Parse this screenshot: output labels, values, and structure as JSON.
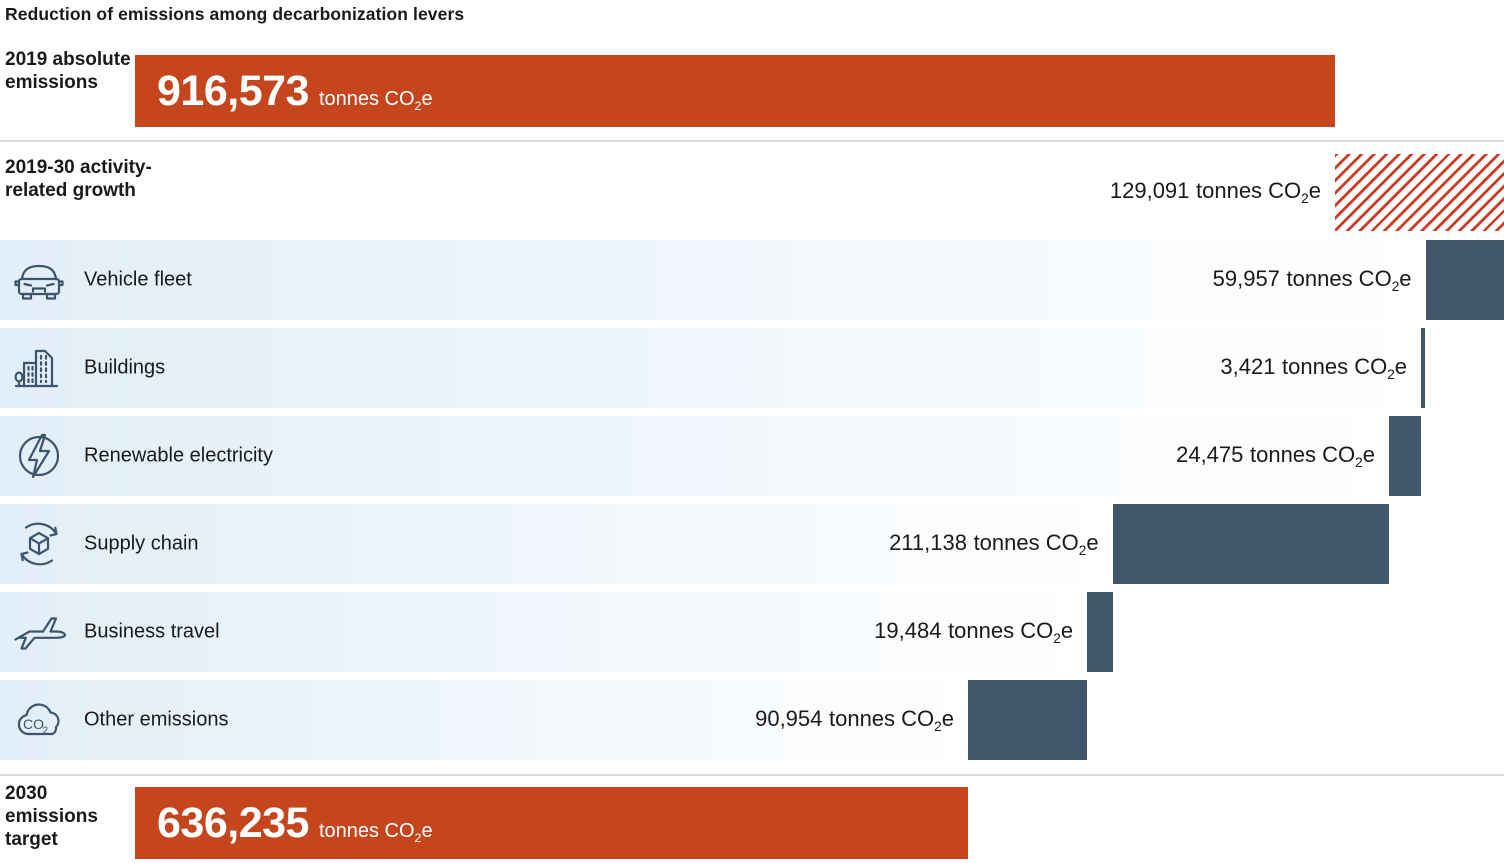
{
  "title": "Reduction of emissions among decarbonization levers",
  "units": {
    "prefix": "tonnes CO",
    "sub": "2",
    "suffix": "e"
  },
  "colors": {
    "orange": "#c5451d",
    "hatch_red": "#cf3b24",
    "dark_blue": "#41566b",
    "band_blue": "#e2eef8",
    "icon_blue": "#3d546a"
  },
  "chart_data": {
    "type": "bar",
    "subtype": "waterfall",
    "orientation": "horizontal",
    "title": "Reduction of emissions among decarbonization levers",
    "unit": "tonnes CO2e",
    "start": {
      "label": "2019 absolute emissions",
      "value": 916573,
      "value_text": "916,573"
    },
    "increase": {
      "label": "2019-30 activity-related growth",
      "value": 129091,
      "value_text": "129,091",
      "style": "red-diagonal-hatch"
    },
    "levers": [
      {
        "label": "Vehicle fleet",
        "icon": "car-icon",
        "value": 59957,
        "value_text": "59,957"
      },
      {
        "label": "Buildings",
        "icon": "buildings-icon",
        "value": 3421,
        "value_text": "3,421"
      },
      {
        "label": "Renewable electricity",
        "icon": "lightning-icon",
        "value": 24475,
        "value_text": "24,475"
      },
      {
        "label": "Supply chain",
        "icon": "supply-chain-icon",
        "value": 211138,
        "value_text": "211,138"
      },
      {
        "label": "Business travel",
        "icon": "airplane-icon",
        "value": 19484,
        "value_text": "19,484"
      },
      {
        "label": "Other emissions",
        "icon": "cloud-co2-icon",
        "value": 90954,
        "value_text": "90,954"
      }
    ],
    "end": {
      "label": "2030 emissions target",
      "value": 636235,
      "value_text": "636,235"
    }
  }
}
